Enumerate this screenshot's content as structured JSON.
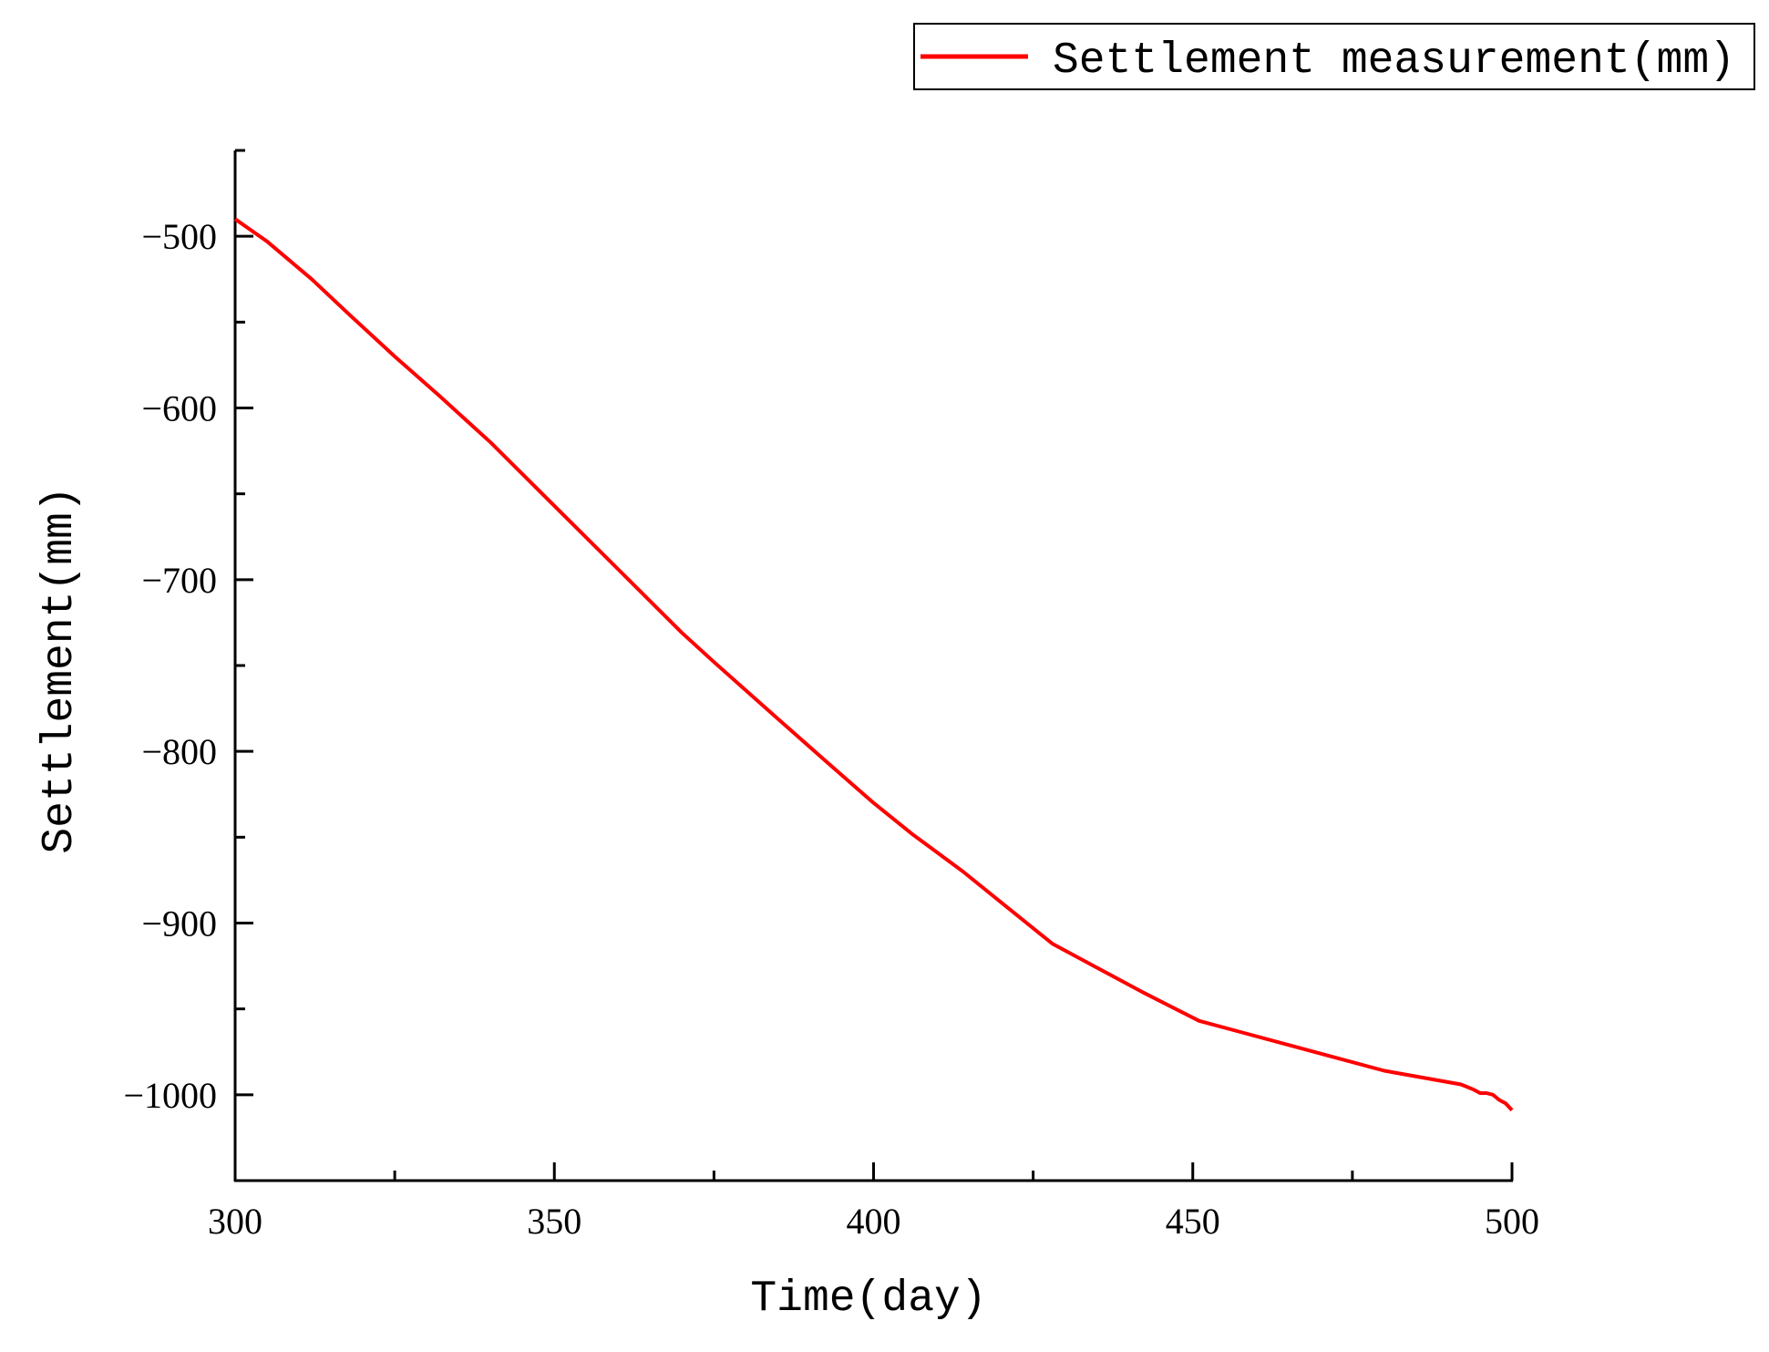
{
  "chart_data": {
    "type": "line",
    "title": "",
    "xlabel": "Time(day)",
    "ylabel": "Settlement(mm)",
    "xlim": [
      300,
      500
    ],
    "ylim": [
      -1050,
      -450
    ],
    "x_ticks": [
      300,
      350,
      400,
      450,
      500
    ],
    "y_ticks": [
      -500,
      -600,
      -700,
      -800,
      -900,
      -1000
    ],
    "x_tick_labels": [
      "300",
      "350",
      "400",
      "450",
      "500"
    ],
    "y_tick_labels": [
      "−500",
      "−600",
      "−700",
      "−800",
      "−900",
      "−1000"
    ],
    "grid": false,
    "legend": {
      "placement": "top-right",
      "outside": true
    },
    "series": [
      {
        "name": "Settlement measurement(mm)",
        "color": "#ff0000",
        "x": [
          300,
          305,
          312,
          318,
          325,
          332,
          340,
          350,
          360,
          370,
          375,
          385,
          392,
          400,
          406,
          414,
          420,
          428,
          435,
          442,
          451,
          458,
          465,
          472,
          480,
          486,
          492,
          494,
          495,
          496,
          497,
          498,
          499,
          500
        ],
        "y": [
          -490,
          -503,
          -525,
          -546,
          -570,
          -593,
          -620,
          -657,
          -694,
          -731,
          -748,
          -781,
          -804,
          -830,
          -848,
          -870,
          -888,
          -912,
          -926,
          -940,
          -957,
          -964,
          -971,
          -978,
          -986,
          -990,
          -994,
          -997,
          -999,
          -999,
          -1000,
          -1003,
          -1005,
          -1009
        ]
      }
    ]
  }
}
